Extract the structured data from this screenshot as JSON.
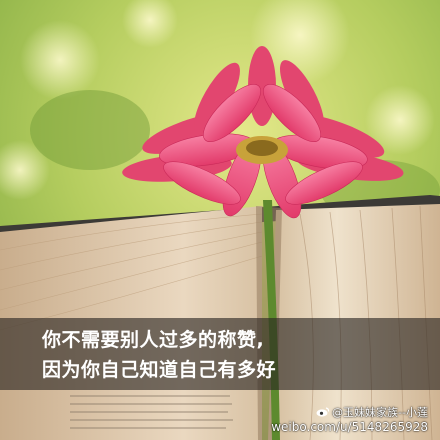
{
  "caption": {
    "line1": "你不需要别人过多的称赞,",
    "line2": "因为你自己知道自己有多好"
  },
  "watermark": {
    "handle": "@玉妹妹家族--小莲",
    "url": "weibo.com/u/5148265928",
    "logo_icon": "weibo-logo-icon"
  },
  "colors": {
    "petal": "#ef4f7d",
    "background": "#b9cf6a",
    "caption_band": "rgba(40,36,32,0.62)"
  }
}
